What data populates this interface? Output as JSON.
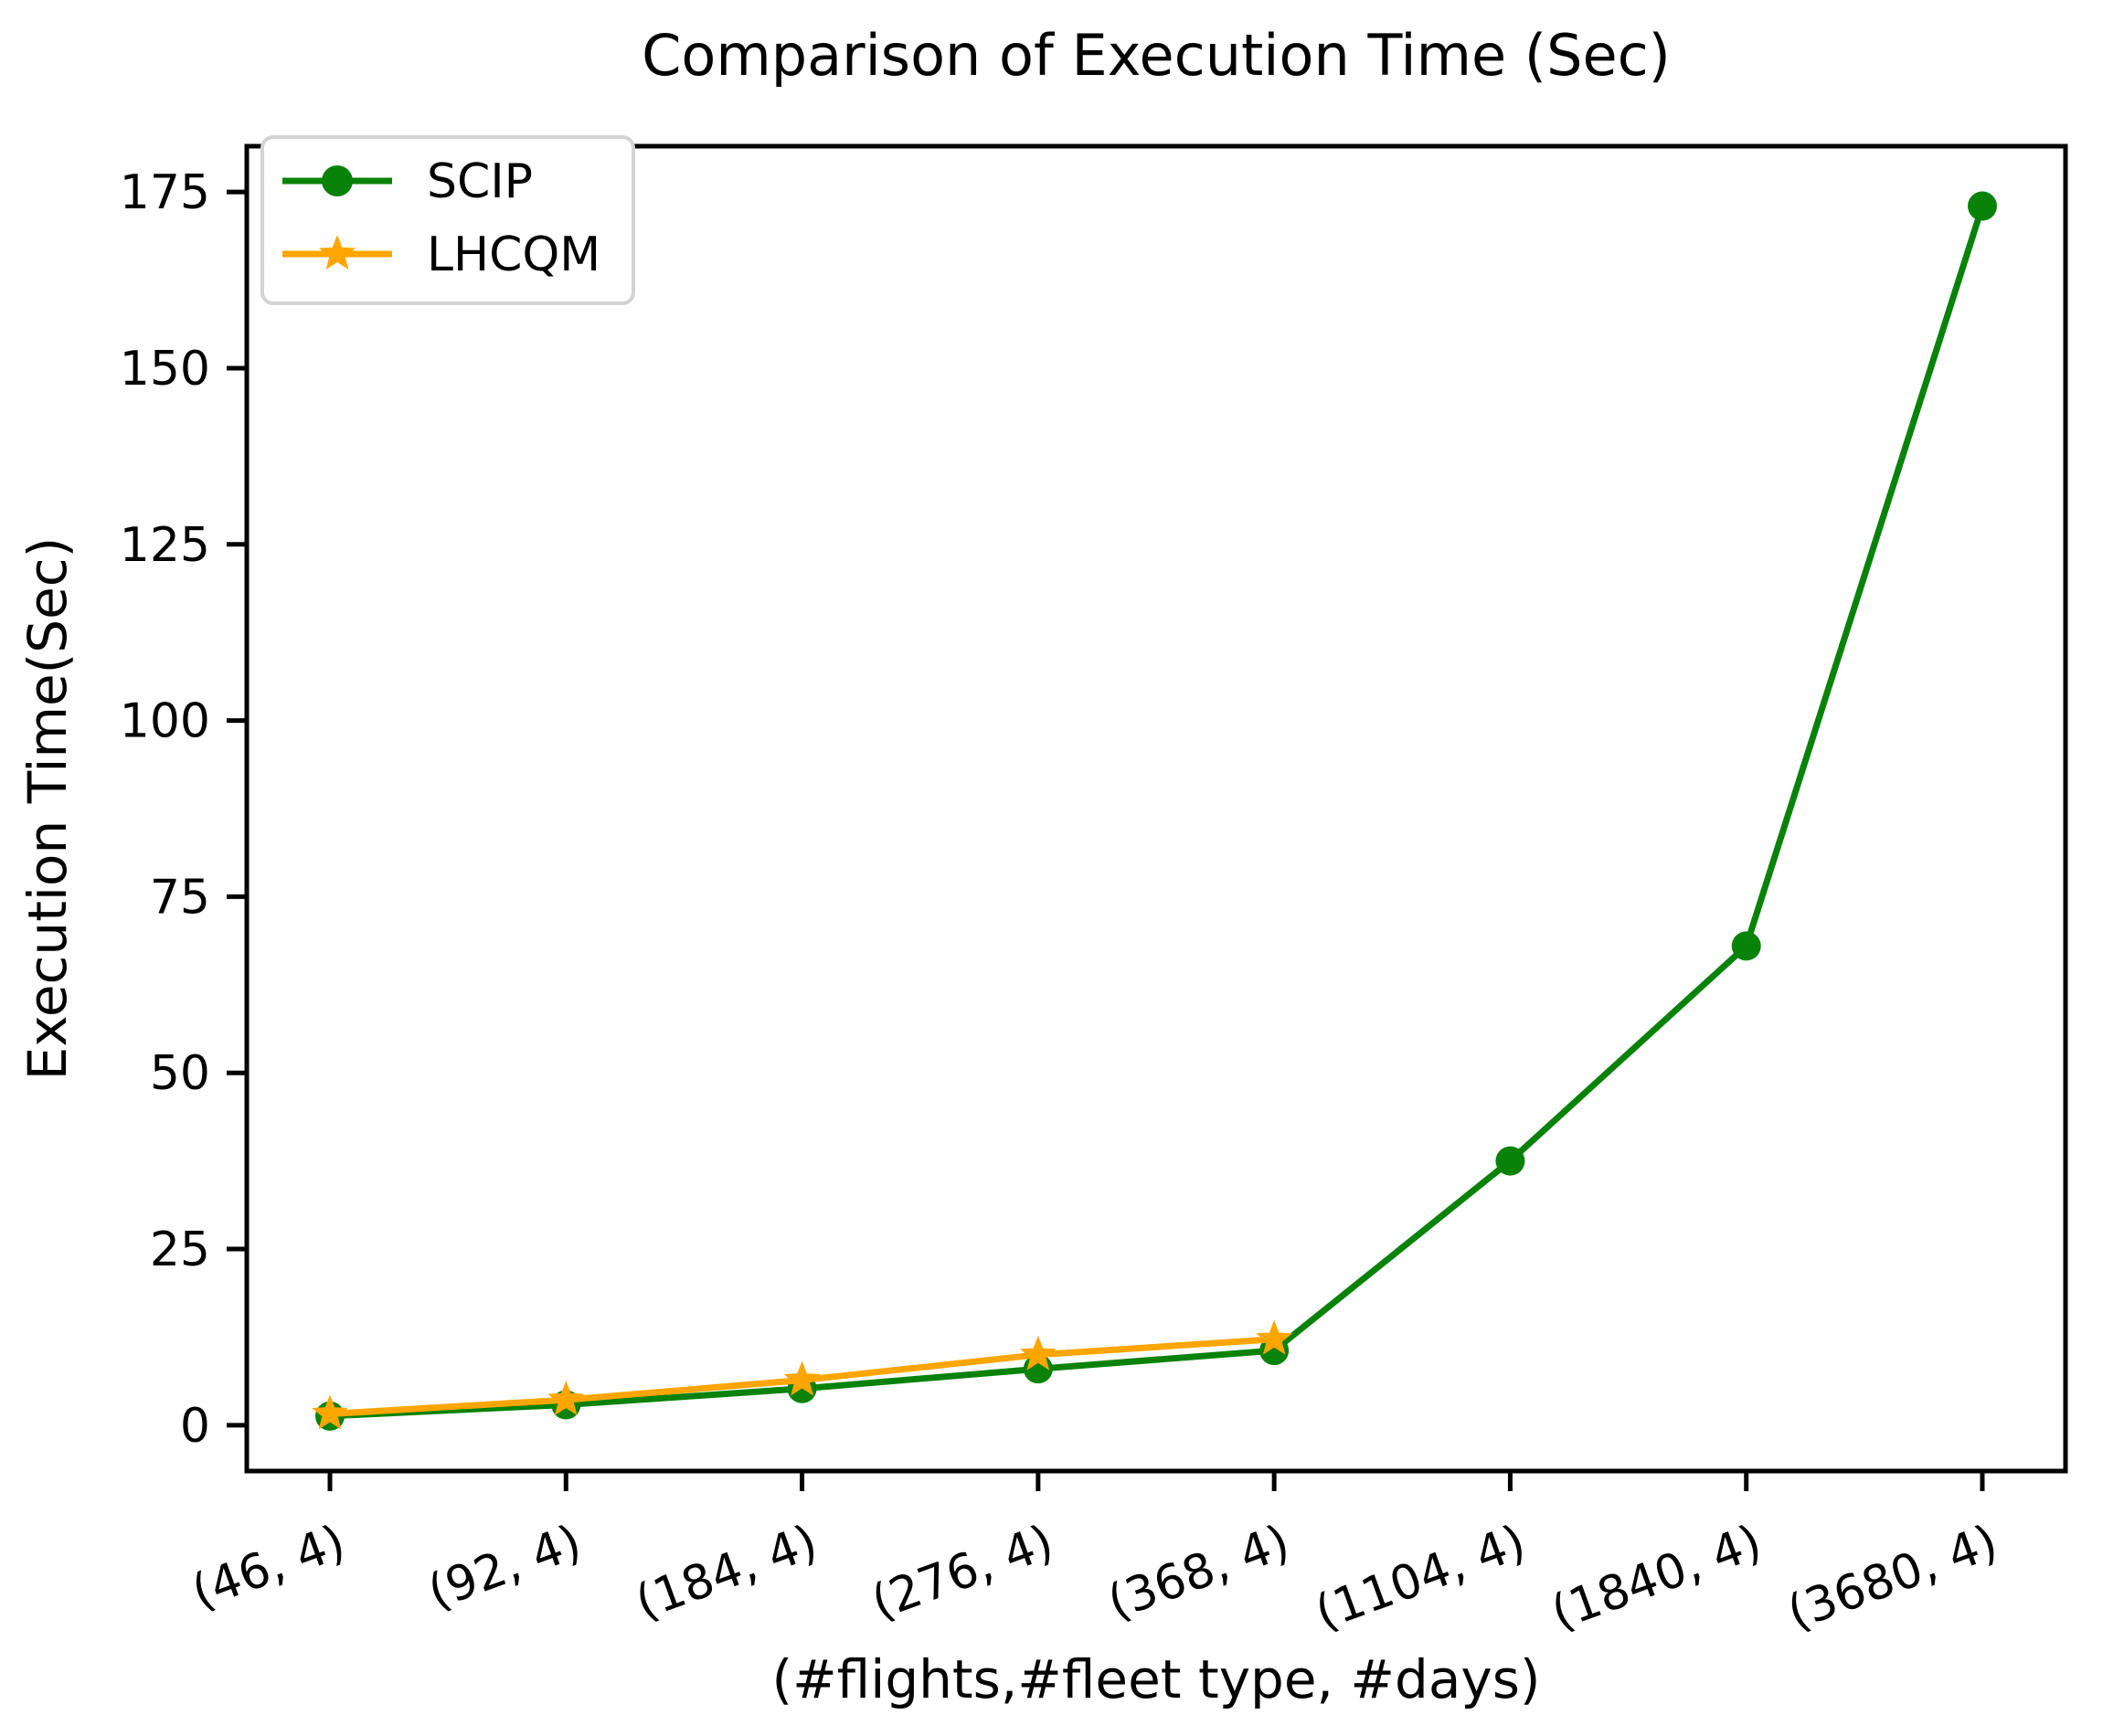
{
  "figure": {
    "title": "Comparison of Execution Time (Sec)"
  },
  "chart_data": {
    "type": "line",
    "title": "Comparison of Execution Time (Sec)",
    "xlabel": "(#flights,#fleet type, #days)",
    "ylabel": "Execution Time(Sec)",
    "categories": [
      "(46, 4)",
      "(92, 4)",
      "(184, 4)",
      "(276, 4)",
      "(368, 4)",
      "(1104, 4)",
      "(1840, 4)",
      "(3680, 4)"
    ],
    "series": [
      {
        "name": "SCIP",
        "color": "#088208",
        "marker": "circle",
        "values": [
          1.3,
          2.9,
          5.2,
          8.0,
          10.6,
          37.5,
          68.0,
          173.0
        ]
      },
      {
        "name": "LHCQM",
        "color": "#FFA500",
        "marker": "star",
        "values": [
          1.6,
          3.6,
          6.4,
          10.0,
          12.2
        ]
      }
    ],
    "y_ticks": [
      0,
      25,
      50,
      75,
      100,
      125,
      150,
      175
    ],
    "ylim": [
      -6.5,
      181.5
    ],
    "grid": false,
    "legend_position": "upper left",
    "x_tick_rotation": -20,
    "legend_border_color": "#d3d3d3",
    "axis_color": "#000000"
  }
}
